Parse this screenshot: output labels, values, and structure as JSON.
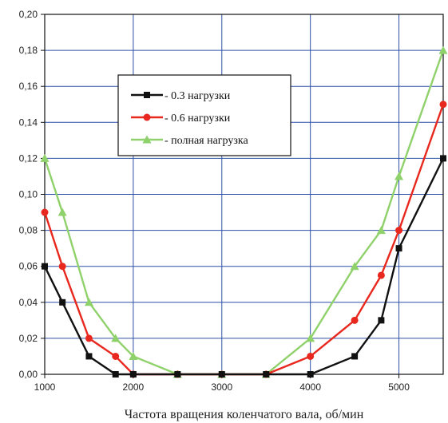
{
  "chart_data": {
    "type": "line",
    "title": "",
    "xlabel": "Частота вращения коленчатого вала, об/мин",
    "ylabel": "",
    "xlim": [
      1000,
      5500
    ],
    "ylim": [
      0,
      0.2
    ],
    "xticks": [
      1000,
      2000,
      3000,
      4000,
      5000
    ],
    "xtick_labels": [
      "1000",
      "2000",
      "3000",
      "4000",
      "5000"
    ],
    "yticks": [
      0,
      0.02,
      0.04,
      0.06,
      0.08,
      0.1,
      0.12,
      0.14,
      0.16,
      0.18,
      0.2
    ],
    "ytick_labels": [
      "0,00",
      "0,02",
      "0,04",
      "0,06",
      "0,08",
      "0,10",
      "0,12",
      "0,14",
      "0,16",
      "0,18",
      "0,20"
    ],
    "grid": true,
    "legend_position": "top-center",
    "series": [
      {
        "name": "- 0.3 нагрузки",
        "color": "#111111",
        "marker": "square",
        "x": [
          1000,
          1200,
          1500,
          1800,
          2000,
          2500,
          3000,
          3500,
          4000,
          4500,
          4800,
          5000,
          5500
        ],
        "y": [
          0.06,
          0.04,
          0.01,
          0.0,
          0.0,
          0.0,
          0.0,
          0.0,
          0.0,
          0.01,
          0.03,
          0.07,
          0.12
        ]
      },
      {
        "name": "- 0.6 нагрузки",
        "color": "#e8281e",
        "marker": "circle",
        "x": [
          1000,
          1200,
          1500,
          1800,
          2000,
          2500,
          3000,
          3500,
          4000,
          4500,
          4800,
          5000,
          5500
        ],
        "y": [
          0.09,
          0.06,
          0.02,
          0.01,
          0.0,
          0.0,
          0.0,
          0.0,
          0.01,
          0.03,
          0.055,
          0.08,
          0.15
        ]
      },
      {
        "name": "- полная нагрузка",
        "color": "#8fd16a",
        "marker": "triangle",
        "x": [
          1000,
          1200,
          1500,
          1800,
          2000,
          2500,
          3000,
          3500,
          4000,
          4500,
          4800,
          5000,
          5500
        ],
        "y": [
          0.12,
          0.09,
          0.04,
          0.02,
          0.01,
          0.0,
          0.0,
          0.0,
          0.02,
          0.06,
          0.08,
          0.11,
          0.18
        ]
      }
    ]
  }
}
